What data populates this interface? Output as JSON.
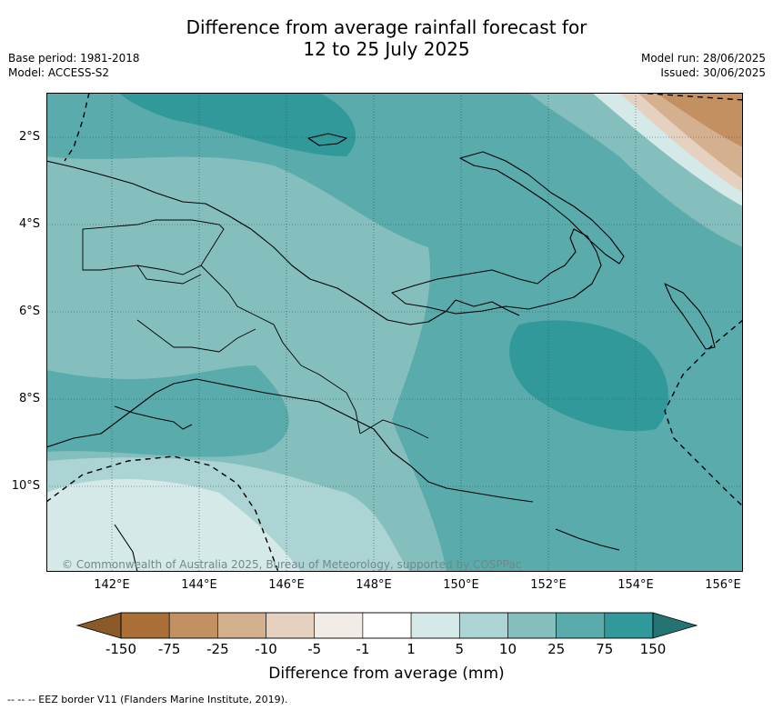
{
  "title_line1": "Difference from average rainfall forecast for",
  "title_line2": "12 to 25 July 2025",
  "meta_left": {
    "base_period": "Base period: 1981-2018",
    "model": "Model: ACCESS-S2"
  },
  "meta_right": {
    "model_run": "Model run: 28/06/2025",
    "issued": "Issued: 30/06/2025"
  },
  "map": {
    "lat_labels": [
      "2°S",
      "4°S",
      "6°S",
      "8°S",
      "10°S"
    ],
    "lon_labels": [
      "142°E",
      "144°E",
      "146°E",
      "148°E",
      "150°E",
      "152°E",
      "154°E",
      "156°E"
    ],
    "copyright": "© Commonwealth of Australia 2025, Bureau of Meteorology, supported by COSPPac"
  },
  "colorbar": {
    "ticks": [
      "-150",
      "-75",
      "-25",
      "-10",
      "-5",
      "-1",
      "1",
      "5",
      "10",
      "25",
      "75",
      "150"
    ],
    "colors": [
      "#a96f36",
      "#c39062",
      "#d5b08f",
      "#e6d0bf",
      "#f1ece6",
      "#ffffff",
      "#d5e9e8",
      "#acd4d4",
      "#84bfbe",
      "#5aabab",
      "#32999a"
    ],
    "under_color": "#8b5a29",
    "over_color": "#257474",
    "label": "Difference from average (mm)"
  },
  "footnote": "--  --  -- EEZ border V11 (Flanders Marine Institute, 2019)."
}
